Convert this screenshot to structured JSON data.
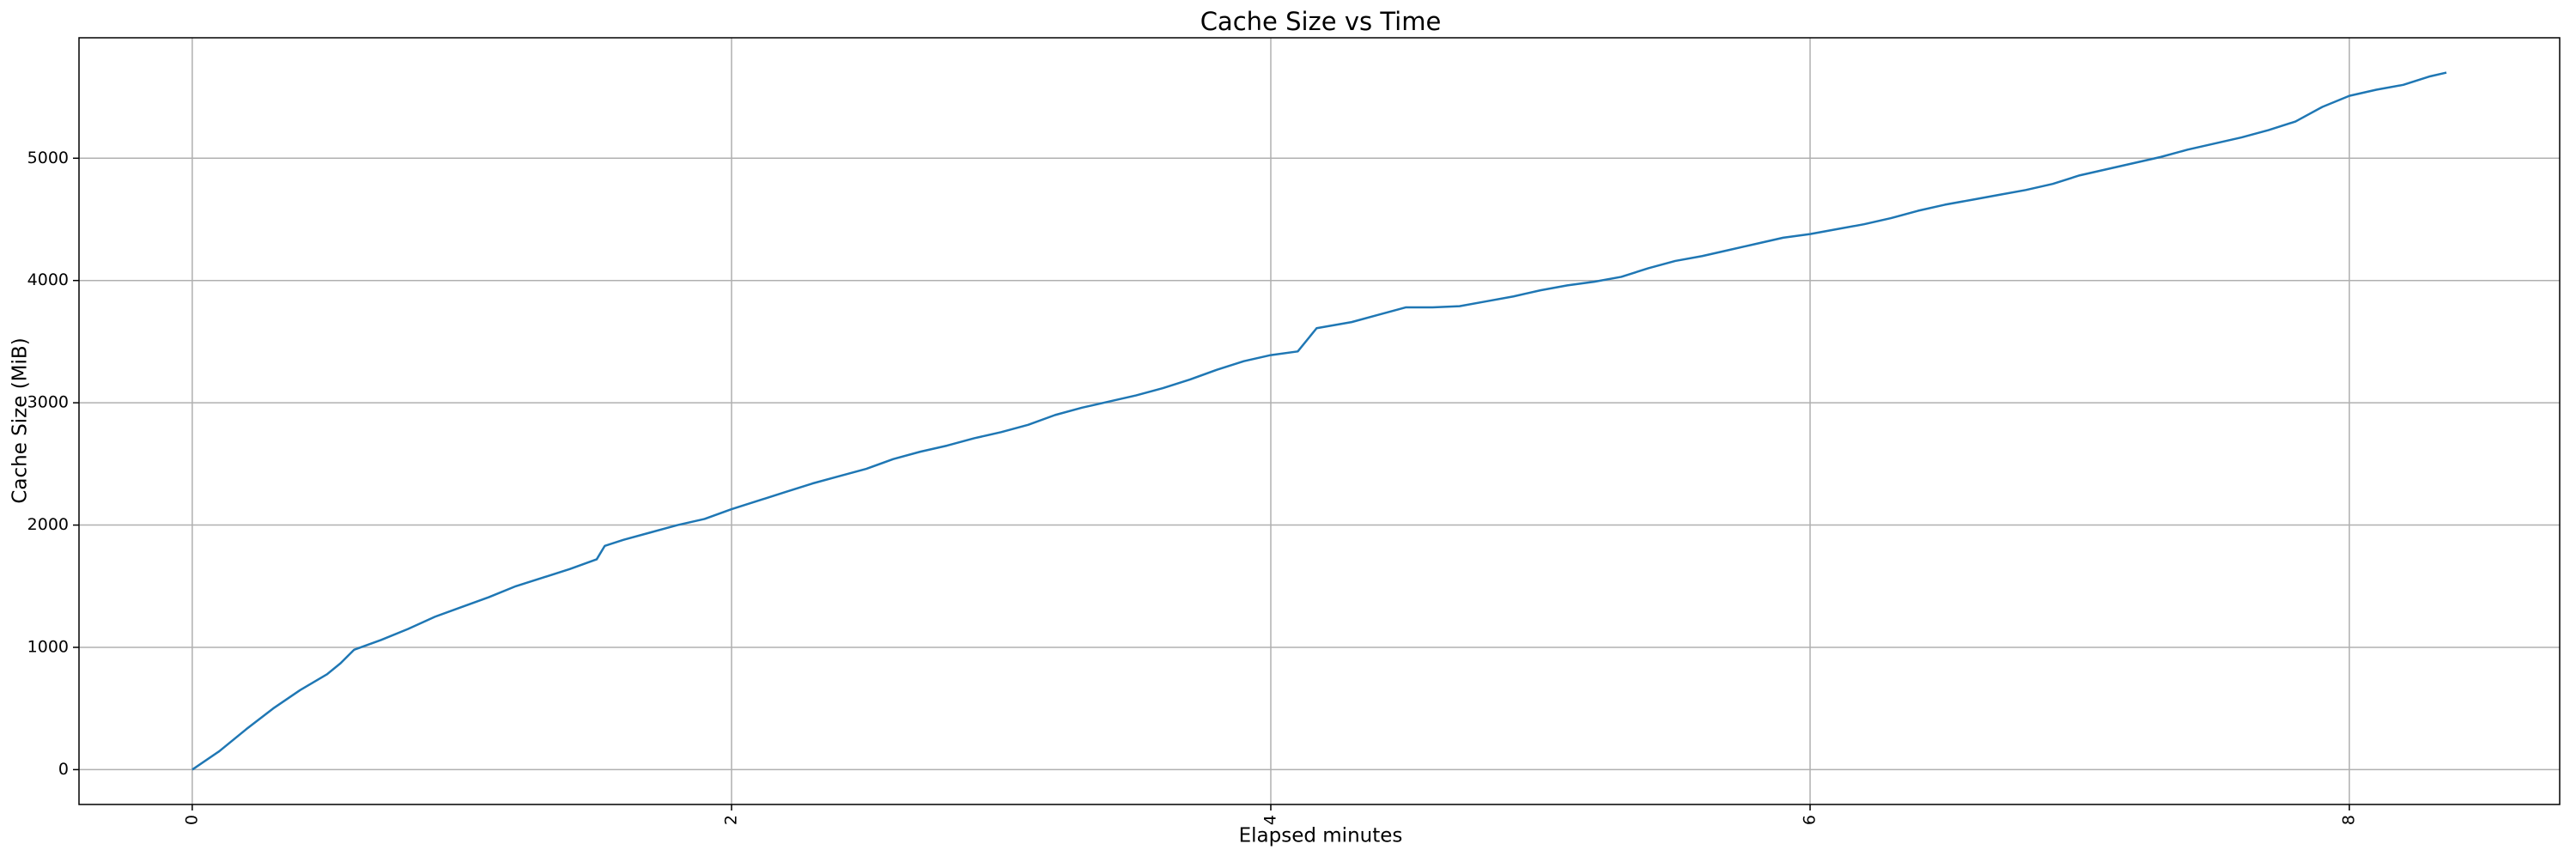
{
  "chart_data": {
    "type": "line",
    "title": "Cache Size vs Time",
    "x_label": "Elapsed minutes",
    "y_label": "Cache Size (MiB)",
    "x": [
      0,
      0.1,
      0.2,
      0.3,
      0.4,
      0.5,
      0.55,
      0.6,
      0.7,
      0.8,
      0.9,
      1.0,
      1.1,
      1.2,
      1.3,
      1.4,
      1.5,
      1.53,
      1.6,
      1.7,
      1.8,
      1.9,
      2.0,
      2.1,
      2.2,
      2.3,
      2.4,
      2.5,
      2.6,
      2.7,
      2.8,
      2.9,
      3.0,
      3.1,
      3.2,
      3.3,
      3.4,
      3.5,
      3.6,
      3.7,
      3.8,
      3.9,
      4.0,
      4.1,
      4.17,
      4.3,
      4.4,
      4.5,
      4.6,
      4.7,
      4.8,
      4.9,
      5.0,
      5.1,
      5.2,
      5.3,
      5.4,
      5.5,
      5.6,
      5.7,
      5.8,
      5.9,
      6.0,
      6.1,
      6.2,
      6.3,
      6.4,
      6.5,
      6.6,
      6.7,
      6.8,
      6.9,
      7.0,
      7.1,
      7.2,
      7.3,
      7.4,
      7.5,
      7.6,
      7.7,
      7.8,
      7.9,
      8.0,
      8.1,
      8.2,
      8.3,
      8.36
    ],
    "values": [
      0,
      150,
      330,
      500,
      650,
      780,
      870,
      980,
      1060,
      1150,
      1250,
      1330,
      1410,
      1500,
      1570,
      1640,
      1720,
      1830,
      1880,
      1940,
      2000,
      2050,
      2130,
      2200,
      2270,
      2340,
      2400,
      2460,
      2540,
      2600,
      2650,
      2710,
      2760,
      2820,
      2900,
      2960,
      3010,
      3060,
      3120,
      3190,
      3270,
      3340,
      3390,
      3420,
      3610,
      3660,
      3720,
      3780,
      3780,
      3790,
      3830,
      3870,
      3920,
      3960,
      3990,
      4030,
      4100,
      4160,
      4200,
      4250,
      4300,
      4350,
      4380,
      4420,
      4460,
      4510,
      4570,
      4620,
      4660,
      4700,
      4740,
      4790,
      4860,
      4910,
      4960,
      5010,
      5070,
      5120,
      5170,
      5230,
      5300,
      5420,
      5510,
      5560,
      5600,
      5670,
      5700
    ],
    "color": "#1f77b4",
    "xlim": [
      -0.42,
      8.78
    ],
    "ylim": [
      -285,
      5985
    ],
    "xticks": [
      0,
      2,
      4,
      6,
      8
    ],
    "yticks": [
      0,
      1000,
      2000,
      3000,
      4000,
      5000
    ],
    "grid": true
  }
}
